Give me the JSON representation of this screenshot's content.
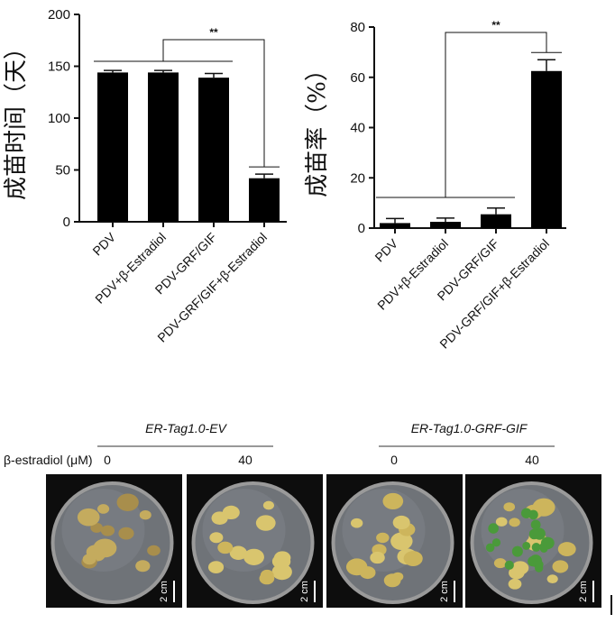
{
  "chart_data": [
    {
      "type": "bar",
      "title": "",
      "ylabel": "成苗时间（天）",
      "xlabel": "",
      "ylim": [
        0,
        200
      ],
      "yticks": [
        0,
        50,
        100,
        150,
        200
      ],
      "categories": [
        "PDV",
        "PDV+β-Estradiol",
        "PDV-GRF/GIF",
        "PDV-GRF/GIF+β-Estradiol"
      ],
      "values": [
        144,
        144,
        139,
        42
      ],
      "errors": [
        2,
        2,
        4,
        4
      ],
      "bar_color": "#000000",
      "significance": "**"
    },
    {
      "type": "bar",
      "title": "",
      "ylabel": "成苗率（%）",
      "xlabel": "",
      "ylim": [
        0,
        80
      ],
      "yticks": [
        0,
        20,
        40,
        60,
        80
      ],
      "categories": [
        "PDV",
        "PDV+β-Estradiol",
        "PDV-GRF/GIF",
        "PDV-GRF/GIF+β-Estradiol"
      ],
      "values": [
        2,
        2.5,
        5.5,
        62.5
      ],
      "errors": [
        1.8,
        1.5,
        2.5,
        4.5
      ],
      "bar_color": "#000000",
      "significance": "**"
    }
  ],
  "photo_panel": {
    "groups": [
      "ER-Tag1.0-EV",
      "ER-Tag1.0-GRF-GIF"
    ],
    "treatment_label": "β-estradiol (μM)",
    "concentrations": [
      "0",
      "40",
      "0",
      "40"
    ],
    "scale_bar": "2 cm",
    "plate_background": "#0d0d0d",
    "callus_color": "#c9b25a",
    "shoot_color": "#4a9a3a"
  }
}
